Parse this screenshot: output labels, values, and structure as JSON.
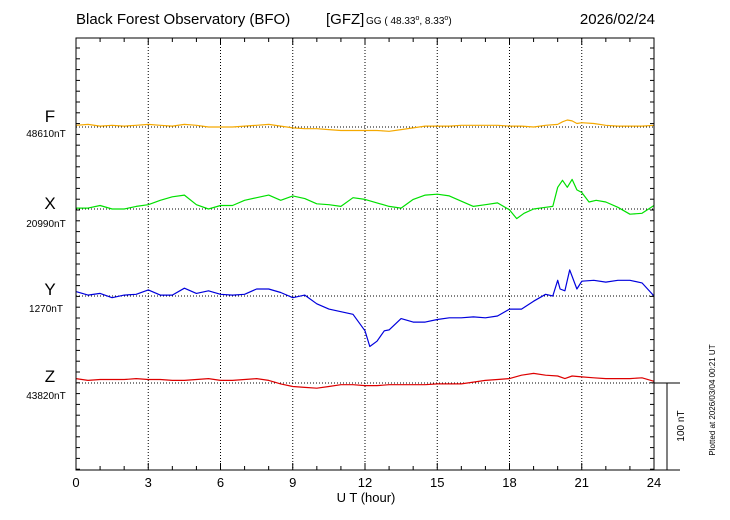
{
  "header": {
    "title": "Black Forest Observatory (BFO)",
    "institute": "[GFZ]",
    "coord_prefix": "GG ( 48.33",
    "coord_deg1": "o",
    "coord_sep": ",   8.33",
    "coord_deg2": "o",
    "coord_suffix": ")",
    "date": "2026/02/24"
  },
  "footer": {
    "plotted": "Plotted at 2026/03/04 00:21 UT",
    "scale_label": "100 nT"
  },
  "colors": {
    "F": "#f5a900",
    "X": "#00e000",
    "Y": "#0000dd",
    "Z": "#dd0000",
    "grid": "#000000",
    "frame": "#000000"
  },
  "chart_data": {
    "type": "line",
    "title": "Black Forest Observatory (BFO) [GFZ] GG ( 48.33°, 8.33°) 2026/02/24",
    "xlabel": "U T (hour)",
    "ylabel": "",
    "xlim": [
      0,
      24
    ],
    "xticks": [
      0,
      3,
      6,
      9,
      12,
      15,
      18,
      21,
      24
    ],
    "xtick_labels": [
      "0",
      "3",
      "6",
      "9",
      "12",
      "15",
      "18",
      "21",
      "24"
    ],
    "units": "nT",
    "scale_bar_nT": 100,
    "grid": true,
    "series": [
      {
        "name": "F",
        "label": "F",
        "baseline_label": "48610nT",
        "baseline_nT": 48610,
        "x": [
          0,
          0.5,
          1,
          1.5,
          2,
          2.5,
          3,
          3.5,
          4,
          4.5,
          5,
          5.5,
          6,
          6.5,
          7,
          7.5,
          8,
          8.5,
          9,
          9.5,
          10,
          10.5,
          11,
          11.5,
          12,
          12.5,
          13,
          13.5,
          14,
          14.5,
          15,
          15.5,
          16,
          16.5,
          17,
          17.5,
          18,
          18.5,
          19,
          19.5,
          20,
          20.2,
          20.4,
          20.6,
          20.8,
          21,
          21.5,
          22,
          22.5,
          23,
          23.5,
          24
        ],
        "values": [
          48612,
          48613,
          48611,
          48612,
          48611,
          48612,
          48613,
          48612,
          48611,
          48613,
          48612,
          48610,
          48610,
          48610,
          48611,
          48612,
          48613,
          48611,
          48609,
          48608,
          48608,
          48607,
          48606,
          48606,
          48606,
          48606,
          48605,
          48607,
          48609,
          48611,
          48611,
          48611,
          48612,
          48612,
          48612,
          48612,
          48611,
          48611,
          48610,
          48612,
          48613,
          48616,
          48618,
          48617,
          48614,
          48615,
          48614,
          48612,
          48611,
          48611,
          48611,
          48612
        ]
      },
      {
        "name": "X",
        "label": "X",
        "baseline_label": "20990nT",
        "baseline_nT": 20990,
        "x": [
          0,
          0.5,
          1,
          1.5,
          2,
          2.5,
          3,
          3.5,
          4,
          4.5,
          5,
          5.5,
          6,
          6.5,
          7,
          7.5,
          8,
          8.5,
          9,
          9.5,
          10,
          10.5,
          11,
          11.5,
          12,
          12.5,
          13,
          13.5,
          14,
          14.5,
          15,
          15.5,
          16,
          16.5,
          17,
          17.5,
          18,
          18.3,
          18.6,
          19,
          19.5,
          19.8,
          20,
          20.2,
          20.4,
          20.6,
          20.8,
          21,
          21.3,
          21.6,
          22,
          22.5,
          23,
          23.5,
          24
        ],
        "values": [
          20991,
          20991,
          20994,
          20990,
          20990,
          20993,
          20995,
          21000,
          21004,
          21006,
          20995,
          20990,
          20994,
          20994,
          21000,
          21003,
          21006,
          21000,
          21005,
          21002,
          20996,
          20995,
          20993,
          21003,
          21001,
          20997,
          20993,
          20991,
          21001,
          21006,
          21007,
          21005,
          20999,
          20993,
          20995,
          20997,
          20989,
          20979,
          20985,
          20990,
          20992,
          20993,
          21015,
          21023,
          21015,
          21024,
          21012,
          21009,
          20998,
          21000,
          20998,
          20992,
          20984,
          20985,
          20994
        ]
      },
      {
        "name": "Y",
        "label": "Y",
        "baseline_label": "1270nT",
        "baseline_nT": 1270,
        "x": [
          0,
          0.5,
          1,
          1.5,
          2,
          2.5,
          3,
          3.5,
          4,
          4.5,
          5,
          5.5,
          6,
          6.5,
          7,
          7.5,
          8,
          8.5,
          9,
          9.5,
          10,
          10.5,
          11,
          11.5,
          12,
          12.2,
          12.5,
          12.8,
          13,
          13.5,
          14,
          14.5,
          15,
          15.5,
          16,
          16.5,
          17,
          17.5,
          18,
          18.5,
          19,
          19.5,
          19.8,
          20,
          20.1,
          20.3,
          20.5,
          20.8,
          21,
          21.5,
          22,
          22.5,
          23,
          23.5,
          24
        ],
        "values": [
          1275,
          1271,
          1273,
          1268,
          1271,
          1272,
          1277,
          1271,
          1271,
          1279,
          1273,
          1276,
          1272,
          1271,
          1272,
          1278,
          1278,
          1274,
          1268,
          1271,
          1261,
          1255,
          1252,
          1249,
          1230,
          1212,
          1218,
          1230,
          1231,
          1244,
          1240,
          1240,
          1243,
          1245,
          1245,
          1246,
          1245,
          1247,
          1255,
          1255,
          1264,
          1272,
          1270,
          1288,
          1278,
          1276,
          1300,
          1278,
          1287,
          1288,
          1286,
          1288,
          1288,
          1285,
          1270
        ]
      },
      {
        "name": "Z",
        "label": "Z",
        "baseline_label": "43820nT",
        "baseline_nT": 43820,
        "x": [
          0,
          0.5,
          1,
          1.5,
          2,
          2.5,
          3,
          3.5,
          4,
          4.5,
          5,
          5.5,
          6,
          6.5,
          7,
          7.5,
          8,
          8.5,
          9,
          9.5,
          10,
          10.5,
          11,
          11.5,
          12,
          12.5,
          13,
          13.5,
          14,
          14.5,
          15,
          15.5,
          16,
          16.5,
          17,
          17.5,
          18,
          18.5,
          19,
          19.5,
          20,
          20.3,
          20.6,
          21,
          21.5,
          22,
          22.5,
          23,
          23.5,
          24
        ],
        "values": [
          43825,
          43823,
          43824,
          43824,
          43824,
          43825,
          43824,
          43824,
          43823,
          43823,
          43824,
          43825,
          43823,
          43823,
          43824,
          43825,
          43823,
          43819,
          43816,
          43815,
          43814,
          43816,
          43818,
          43818,
          43817,
          43817,
          43818,
          43818,
          43818,
          43818,
          43819,
          43819,
          43819,
          43821,
          43823,
          43824,
          43825,
          43829,
          43831,
          43829,
          43828,
          43825,
          43828,
          43827,
          43826,
          43825,
          43825,
          43825,
          43826,
          43822
        ]
      }
    ]
  }
}
